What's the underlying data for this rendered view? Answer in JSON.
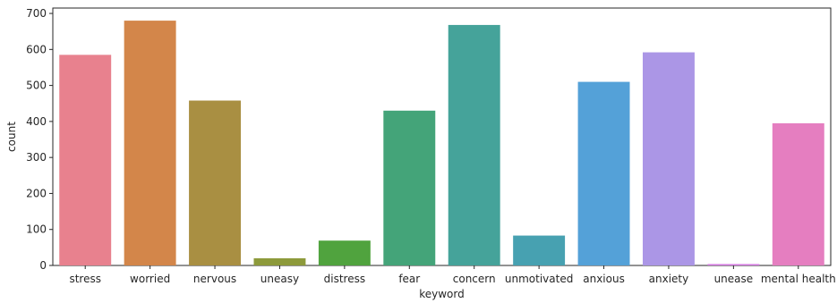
{
  "chart_data": {
    "type": "bar",
    "xlabel": "keyword",
    "ylabel": "count",
    "ylim": [
      0,
      715
    ],
    "yticks": [
      0,
      100,
      200,
      300,
      400,
      500,
      600,
      700
    ],
    "categories": [
      "stress",
      "worried",
      "nervous",
      "uneasy",
      "distress",
      "fear",
      "concern",
      "unmotivated",
      "anxious",
      "anxiety",
      "unease",
      "mental health"
    ],
    "values": [
      585,
      680,
      458,
      20,
      69,
      430,
      668,
      83,
      510,
      592,
      4,
      395
    ],
    "colors": [
      "#e8818e",
      "#d3864a",
      "#a98f42",
      "#8d9a3b",
      "#50a33e",
      "#44a479",
      "#45a39a",
      "#47a1b1",
      "#54a1d8",
      "#ab96e6",
      "#d77fe3",
      "#e57ec0"
    ],
    "grid": false,
    "legend": "none"
  }
}
